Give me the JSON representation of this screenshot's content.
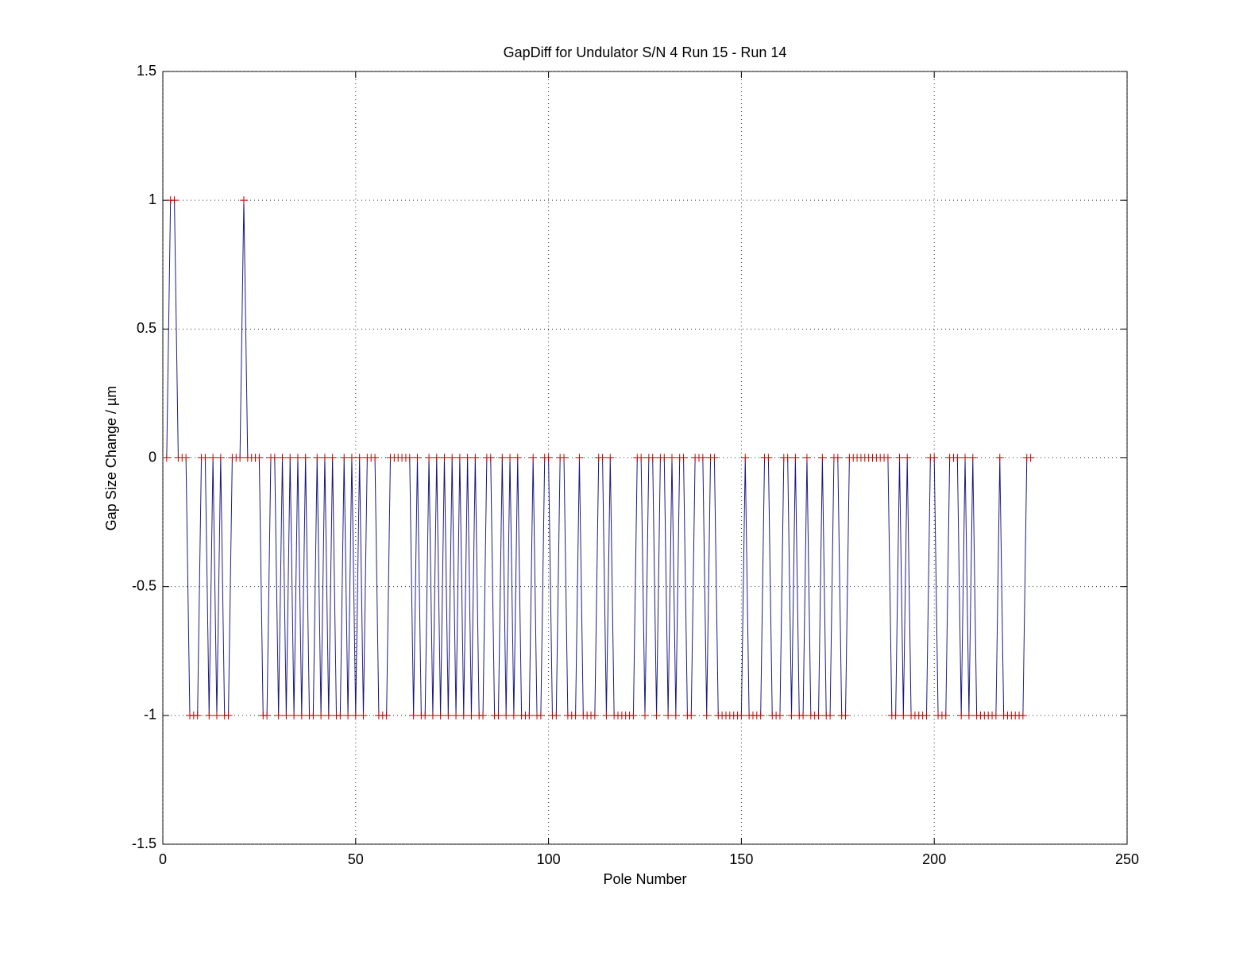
{
  "chart_data": {
    "type": "line",
    "title": "GapDiff  for Undulator S/N 4 Run 15 - Run 14",
    "x_label": "Pole Number",
    "y_label": "Gap Size Change / µm",
    "xlim": [
      0,
      250
    ],
    "xticks": [
      0,
      50,
      100,
      150,
      200,
      250
    ],
    "ylim": [
      -1.5,
      1.5
    ],
    "yticks": [
      -1.5,
      -1,
      -0.5,
      0,
      0.5,
      1,
      1.5
    ],
    "grid": true,
    "color": "#1a1a80",
    "marker": "+",
    "marker_color": "#cc0000",
    "x": [
      1,
      2,
      3,
      4,
      5,
      6,
      7,
      8,
      9,
      10,
      11,
      12,
      13,
      14,
      15,
      16,
      17,
      18,
      19,
      20,
      21,
      22,
      23,
      24,
      25,
      26,
      27,
      28,
      29,
      30,
      31,
      32,
      33,
      34,
      35,
      36,
      37,
      38,
      39,
      40,
      41,
      42,
      43,
      44,
      45,
      46,
      47,
      48,
      49,
      50,
      51,
      52,
      53,
      54,
      55,
      56,
      57,
      58,
      59,
      60,
      61,
      62,
      63,
      64,
      65,
      66,
      67,
      68,
      69,
      70,
      71,
      72,
      73,
      74,
      75,
      76,
      77,
      78,
      79,
      80,
      81,
      82,
      83,
      84,
      85,
      86,
      87,
      88,
      89,
      90,
      91,
      92,
      93,
      94,
      95,
      96,
      97,
      98,
      99,
      100,
      101,
      102,
      103,
      104,
      105,
      106,
      107,
      108,
      109,
      110,
      111,
      112,
      113,
      114,
      115,
      116,
      117,
      118,
      119,
      120,
      121,
      122,
      123,
      124,
      125,
      126,
      127,
      128,
      129,
      130,
      131,
      132,
      133,
      134,
      135,
      136,
      137,
      138,
      139,
      140,
      141,
      142,
      143,
      144,
      145,
      146,
      147,
      148,
      149,
      150,
      151,
      152,
      153,
      154,
      155,
      156,
      157,
      158,
      159,
      160,
      161,
      162,
      163,
      164,
      165,
      166,
      167,
      168,
      169,
      170,
      171,
      172,
      173,
      174,
      175,
      176,
      177,
      178,
      179,
      180,
      181,
      182,
      183,
      184,
      185,
      186,
      187,
      188,
      189,
      190,
      191,
      192,
      193,
      194,
      195,
      196,
      197,
      198,
      199,
      200,
      201,
      202,
      203,
      204,
      205,
      206,
      207,
      208,
      209,
      210,
      211,
      212,
      213,
      214,
      215,
      216,
      217,
      218,
      219,
      220,
      221,
      222,
      223,
      224,
      225
    ],
    "values": [
      0,
      1,
      1,
      0,
      0,
      0,
      -1,
      -1,
      -1,
      0,
      0,
      -1,
      0,
      -1,
      0,
      -1,
      -1,
      0,
      0,
      0,
      1,
      0,
      0,
      0,
      0,
      -1,
      -1,
      0,
      0,
      -1,
      0,
      -1,
      0,
      -1,
      0,
      -1,
      0,
      -1,
      -1,
      0,
      -1,
      0,
      -1,
      0,
      -1,
      -1,
      0,
      -1,
      0,
      -1,
      0,
      -1,
      0,
      0,
      0,
      -1,
      -1,
      -1,
      0,
      0,
      0,
      0,
      0,
      0,
      -1,
      0,
      -1,
      -1,
      0,
      -1,
      0,
      -1,
      0,
      -1,
      0,
      -1,
      0,
      -1,
      0,
      -1,
      0,
      -1,
      -1,
      0,
      0,
      -1,
      -1,
      0,
      -1,
      0,
      -1,
      0,
      -1,
      -1,
      -1,
      0,
      -1,
      -1,
      0,
      0,
      -1,
      -1,
      0,
      0,
      -1,
      -1,
      -1,
      0,
      -1,
      -1,
      -1,
      -1,
      0,
      0,
      -1,
      0,
      -1,
      -1,
      -1,
      -1,
      -1,
      -1,
      0,
      0,
      -1,
      0,
      0,
      -1,
      0,
      0,
      -1,
      0,
      -1,
      0,
      0,
      -1,
      -1,
      0,
      0,
      0,
      -1,
      0,
      0,
      -1,
      -1,
      -1,
      -1,
      -1,
      -1,
      -1,
      0,
      -1,
      -1,
      -1,
      -1,
      0,
      0,
      -1,
      -1,
      -1,
      0,
      0,
      -1,
      0,
      -1,
      -1,
      0,
      -1,
      -1,
      -1,
      0,
      -1,
      -1,
      0,
      0,
      -1,
      -1,
      0,
      0,
      0,
      0,
      0,
      0,
      0,
      0,
      0,
      0,
      0,
      -1,
      -1,
      0,
      -1,
      0,
      -1,
      -1,
      -1,
      -1,
      -1,
      0,
      0,
      -1,
      -1,
      -1,
      0,
      0,
      0,
      -1,
      0,
      -1,
      0,
      -1,
      -1,
      -1,
      -1,
      -1,
      -1,
      0,
      -1,
      -1,
      -1,
      -1,
      -1,
      -1,
      0,
      0
    ]
  }
}
